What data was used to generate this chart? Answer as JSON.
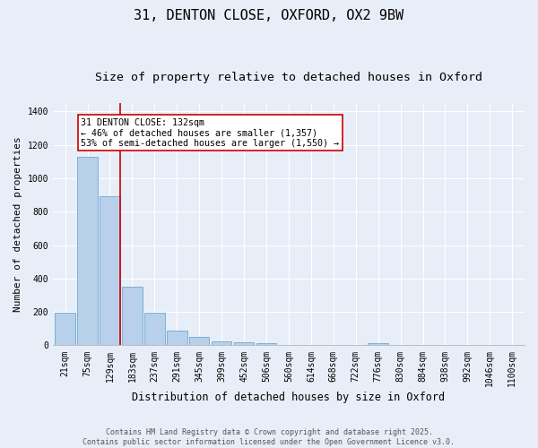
{
  "title_line1": "31, DENTON CLOSE, OXFORD, OX2 9BW",
  "title_line2": "Size of property relative to detached houses in Oxford",
  "xlabel": "Distribution of detached houses by size in Oxford",
  "ylabel": "Number of detached properties",
  "bar_labels": [
    "21sqm",
    "75sqm",
    "129sqm",
    "183sqm",
    "237sqm",
    "291sqm",
    "345sqm",
    "399sqm",
    "452sqm",
    "506sqm",
    "560sqm",
    "614sqm",
    "668sqm",
    "722sqm",
    "776sqm",
    "830sqm",
    "884sqm",
    "938sqm",
    "992sqm",
    "1046sqm",
    "1100sqm"
  ],
  "bar_heights": [
    195,
    1130,
    895,
    350,
    195,
    88,
    52,
    22,
    18,
    12,
    0,
    0,
    0,
    0,
    14,
    0,
    0,
    0,
    0,
    0,
    0
  ],
  "bar_color": "#b8d0ea",
  "bar_edge_color": "#6aaad4",
  "bg_color": "#e8eef8",
  "vline_x": 2.48,
  "vline_color": "#cc0000",
  "annotation_text": "31 DENTON CLOSE: 132sqm\n← 46% of detached houses are smaller (1,357)\n53% of semi-detached houses are larger (1,550) →",
  "annotation_box_color": "#cc0000",
  "ylim": [
    0,
    1450
  ],
  "yticks": [
    0,
    200,
    400,
    600,
    800,
    1000,
    1200,
    1400
  ],
  "footnote": "Contains HM Land Registry data © Crown copyright and database right 2025.\nContains public sector information licensed under the Open Government Licence v3.0.",
  "title_fontsize": 11,
  "subtitle_fontsize": 9.5,
  "tick_fontsize": 7,
  "ylabel_fontsize": 8,
  "xlabel_fontsize": 8.5,
  "annot_fontsize": 7.2,
  "footnote_fontsize": 6
}
